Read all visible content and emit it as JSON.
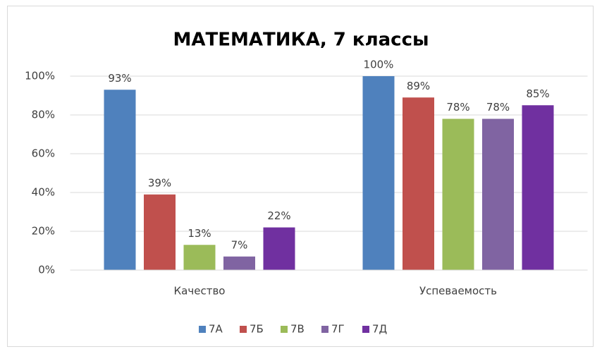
{
  "chart_data": {
    "type": "bar",
    "title": "МАТЕМАТИКА, 7 классы",
    "categories": [
      "Качество",
      "Успеваемость"
    ],
    "series": [
      {
        "name": "7А",
        "color": "#4f81bd",
        "values": [
          93,
          100
        ],
        "value_labels": [
          "93%",
          "100%"
        ]
      },
      {
        "name": "7Б",
        "color": "#c0504d",
        "values": [
          39,
          89
        ],
        "value_labels": [
          "39%",
          "89%"
        ]
      },
      {
        "name": "7В",
        "color": "#9bbb59",
        "values": [
          13,
          78
        ],
        "value_labels": [
          "13%",
          "78%"
        ]
      },
      {
        "name": "7Г",
        "color": "#8064a2",
        "values": [
          7,
          78
        ],
        "value_labels": [
          "7%",
          "78%"
        ]
      },
      {
        "name": "7Д",
        "color": "#7030a0",
        "values": [
          22,
          85
        ],
        "value_labels": [
          "22%",
          "85%"
        ]
      }
    ],
    "ylim": [
      0,
      100
    ],
    "yticks": [
      {
        "value": 0,
        "label": "0%"
      },
      {
        "value": 20,
        "label": "20%"
      },
      {
        "value": 40,
        "label": "40%"
      },
      {
        "value": 60,
        "label": "60%"
      },
      {
        "value": 80,
        "label": "80%"
      },
      {
        "value": 100,
        "label": "100%"
      }
    ],
    "grid": true,
    "legend": "bottom"
  }
}
